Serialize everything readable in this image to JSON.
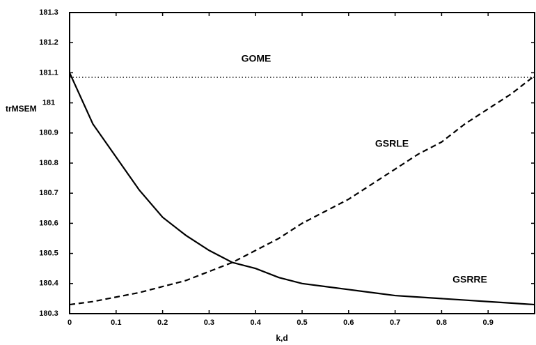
{
  "chart_data": {
    "type": "line",
    "xlabel": "k,d",
    "ylabel": "trMSEM",
    "x": [
      0,
      0.05,
      0.1,
      0.15,
      0.2,
      0.25,
      0.3,
      0.35,
      0.4,
      0.45,
      0.5,
      0.55,
      0.6,
      0.65,
      0.7,
      0.75,
      0.8,
      0.85,
      0.9,
      0.95,
      1
    ],
    "series": [
      {
        "name": "GOME",
        "color": "#000000",
        "style": "dotted",
        "values": [
          181.085,
          181.085,
          181.085,
          181.085,
          181.085,
          181.085,
          181.085,
          181.085,
          181.085,
          181.085,
          181.085,
          181.085,
          181.085,
          181.085,
          181.085,
          181.085,
          181.085,
          181.085,
          181.085,
          181.085,
          181.085
        ]
      },
      {
        "name": "GSRLE",
        "color": "#000000",
        "style": "dashed",
        "values": [
          180.33,
          180.34,
          180.355,
          180.37,
          180.39,
          180.41,
          180.44,
          180.47,
          180.51,
          180.55,
          180.6,
          180.64,
          180.68,
          180.73,
          180.78,
          180.83,
          180.87,
          180.93,
          180.98,
          181.03,
          181.09
        ]
      },
      {
        "name": "GSRRE",
        "color": "#000000",
        "style": "solid",
        "values": [
          181.1,
          180.93,
          180.82,
          180.71,
          180.62,
          180.56,
          180.51,
          180.47,
          180.45,
          180.42,
          180.4,
          180.39,
          180.38,
          180.37,
          180.36,
          180.355,
          180.35,
          180.345,
          180.34,
          180.335,
          180.33
        ]
      }
    ],
    "xlim": [
      0,
      1
    ],
    "ylim": [
      180.3,
      181.3
    ],
    "xticks": [
      0,
      0.1,
      0.2,
      0.3,
      0.4,
      0.5,
      0.6,
      0.7,
      0.8,
      0.9
    ],
    "yticks": [
      180.3,
      180.4,
      180.5,
      180.6,
      180.7,
      180.8,
      180.9,
      181,
      181.1,
      181.2,
      181.3
    ]
  }
}
